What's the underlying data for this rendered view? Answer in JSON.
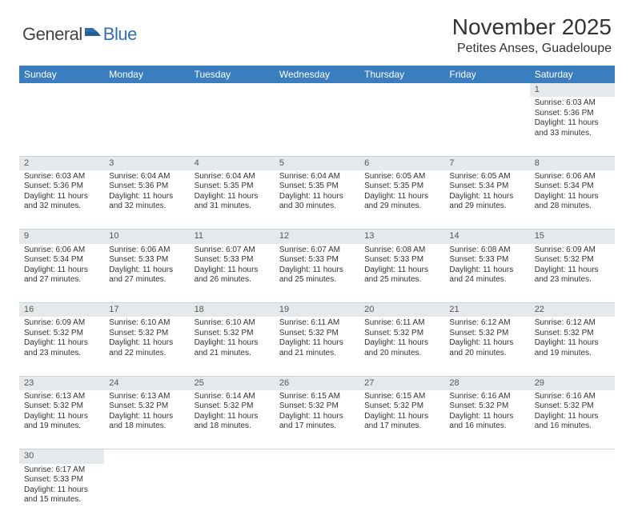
{
  "logo": {
    "general": "General",
    "blue": "Blue"
  },
  "title": "November 2025",
  "location": "Petites Anses, Guadeloupe",
  "colors": {
    "header_bg": "#3a7ebf",
    "header_text": "#ffffff",
    "daynum_bg": "#e6e9eb",
    "border": "#c9d3da",
    "text": "#333333"
  },
  "day_headers": [
    "Sunday",
    "Monday",
    "Tuesday",
    "Wednesday",
    "Thursday",
    "Friday",
    "Saturday"
  ],
  "weeks": [
    [
      null,
      null,
      null,
      null,
      null,
      null,
      {
        "n": "1",
        "sr": "6:03 AM",
        "ss": "5:36 PM",
        "dl": "11 hours and 33 minutes."
      }
    ],
    [
      {
        "n": "2",
        "sr": "6:03 AM",
        "ss": "5:36 PM",
        "dl": "11 hours and 32 minutes."
      },
      {
        "n": "3",
        "sr": "6:04 AM",
        "ss": "5:36 PM",
        "dl": "11 hours and 32 minutes."
      },
      {
        "n": "4",
        "sr": "6:04 AM",
        "ss": "5:35 PM",
        "dl": "11 hours and 31 minutes."
      },
      {
        "n": "5",
        "sr": "6:04 AM",
        "ss": "5:35 PM",
        "dl": "11 hours and 30 minutes."
      },
      {
        "n": "6",
        "sr": "6:05 AM",
        "ss": "5:35 PM",
        "dl": "11 hours and 29 minutes."
      },
      {
        "n": "7",
        "sr": "6:05 AM",
        "ss": "5:34 PM",
        "dl": "11 hours and 29 minutes."
      },
      {
        "n": "8",
        "sr": "6:06 AM",
        "ss": "5:34 PM",
        "dl": "11 hours and 28 minutes."
      }
    ],
    [
      {
        "n": "9",
        "sr": "6:06 AM",
        "ss": "5:34 PM",
        "dl": "11 hours and 27 minutes."
      },
      {
        "n": "10",
        "sr": "6:06 AM",
        "ss": "5:33 PM",
        "dl": "11 hours and 27 minutes."
      },
      {
        "n": "11",
        "sr": "6:07 AM",
        "ss": "5:33 PM",
        "dl": "11 hours and 26 minutes."
      },
      {
        "n": "12",
        "sr": "6:07 AM",
        "ss": "5:33 PM",
        "dl": "11 hours and 25 minutes."
      },
      {
        "n": "13",
        "sr": "6:08 AM",
        "ss": "5:33 PM",
        "dl": "11 hours and 25 minutes."
      },
      {
        "n": "14",
        "sr": "6:08 AM",
        "ss": "5:33 PM",
        "dl": "11 hours and 24 minutes."
      },
      {
        "n": "15",
        "sr": "6:09 AM",
        "ss": "5:32 PM",
        "dl": "11 hours and 23 minutes."
      }
    ],
    [
      {
        "n": "16",
        "sr": "6:09 AM",
        "ss": "5:32 PM",
        "dl": "11 hours and 23 minutes."
      },
      {
        "n": "17",
        "sr": "6:10 AM",
        "ss": "5:32 PM",
        "dl": "11 hours and 22 minutes."
      },
      {
        "n": "18",
        "sr": "6:10 AM",
        "ss": "5:32 PM",
        "dl": "11 hours and 21 minutes."
      },
      {
        "n": "19",
        "sr": "6:11 AM",
        "ss": "5:32 PM",
        "dl": "11 hours and 21 minutes."
      },
      {
        "n": "20",
        "sr": "6:11 AM",
        "ss": "5:32 PM",
        "dl": "11 hours and 20 minutes."
      },
      {
        "n": "21",
        "sr": "6:12 AM",
        "ss": "5:32 PM",
        "dl": "11 hours and 20 minutes."
      },
      {
        "n": "22",
        "sr": "6:12 AM",
        "ss": "5:32 PM",
        "dl": "11 hours and 19 minutes."
      }
    ],
    [
      {
        "n": "23",
        "sr": "6:13 AM",
        "ss": "5:32 PM",
        "dl": "11 hours and 19 minutes."
      },
      {
        "n": "24",
        "sr": "6:13 AM",
        "ss": "5:32 PM",
        "dl": "11 hours and 18 minutes."
      },
      {
        "n": "25",
        "sr": "6:14 AM",
        "ss": "5:32 PM",
        "dl": "11 hours and 18 minutes."
      },
      {
        "n": "26",
        "sr": "6:15 AM",
        "ss": "5:32 PM",
        "dl": "11 hours and 17 minutes."
      },
      {
        "n": "27",
        "sr": "6:15 AM",
        "ss": "5:32 PM",
        "dl": "11 hours and 17 minutes."
      },
      {
        "n": "28",
        "sr": "6:16 AM",
        "ss": "5:32 PM",
        "dl": "11 hours and 16 minutes."
      },
      {
        "n": "29",
        "sr": "6:16 AM",
        "ss": "5:32 PM",
        "dl": "11 hours and 16 minutes."
      }
    ],
    [
      {
        "n": "30",
        "sr": "6:17 AM",
        "ss": "5:33 PM",
        "dl": "11 hours and 15 minutes."
      },
      null,
      null,
      null,
      null,
      null,
      null
    ]
  ],
  "labels": {
    "sunrise": "Sunrise: ",
    "sunset": "Sunset: ",
    "daylight": "Daylight: "
  }
}
